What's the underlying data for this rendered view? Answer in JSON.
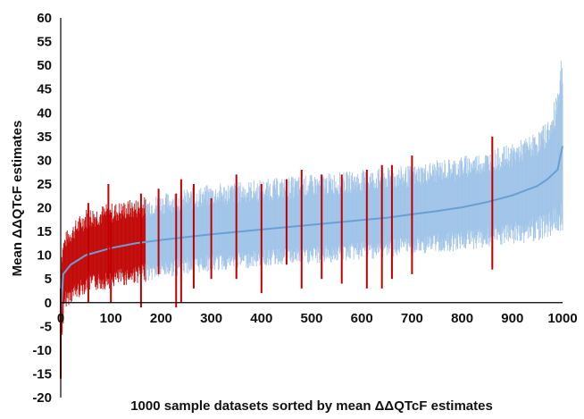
{
  "chart_data": {
    "type": "scatter",
    "title": "",
    "xlabel": "1000 sample datasets sorted by mean ΔΔQTcF estimates",
    "ylabel": "Mean ΔΔQTcF estimates",
    "xlim": [
      0,
      1000
    ],
    "ylim": [
      -20,
      60
    ],
    "x_ticks": [
      0,
      100,
      200,
      300,
      400,
      500,
      600,
      700,
      800,
      900,
      1000
    ],
    "y_ticks": [
      -20,
      -15,
      -10,
      -5,
      0,
      5,
      10,
      15,
      20,
      25,
      30,
      35,
      40,
      45,
      50,
      55,
      60
    ],
    "grid": false,
    "legend": "none",
    "colors": {
      "blue_bars": "#9fc3e8",
      "mean_curve": "#6a9fd4",
      "red_bars": "#c00000",
      "axis": "#000000"
    },
    "mean_curve": {
      "x": [
        0,
        5,
        20,
        50,
        100,
        150,
        200,
        250,
        300,
        350,
        400,
        450,
        500,
        550,
        600,
        650,
        700,
        750,
        800,
        850,
        900,
        950,
        970,
        990,
        1000
      ],
      "y": [
        -3,
        6,
        8,
        10,
        11.5,
        12.5,
        13.2,
        13.8,
        14.4,
        14.9,
        15.4,
        15.9,
        16.4,
        16.9,
        17.4,
        17.9,
        18.6,
        19.3,
        20.1,
        21.2,
        22.6,
        24.6,
        26,
        28,
        33
      ]
    },
    "red_intervals": [
      {
        "x": 0,
        "low": -16,
        "high": 3
      },
      {
        "x": 55,
        "low": 0,
        "high": 21
      },
      {
        "x": 95,
        "low": 5,
        "high": 25
      },
      {
        "x": 100,
        "low": 0,
        "high": 19
      },
      {
        "x": 160,
        "low": -1,
        "high": 23
      },
      {
        "x": 195,
        "low": 6,
        "high": 24
      },
      {
        "x": 230,
        "low": -1,
        "high": 23
      },
      {
        "x": 240,
        "low": 0,
        "high": 26
      },
      {
        "x": 265,
        "low": 3,
        "high": 25
      },
      {
        "x": 300,
        "low": 5,
        "high": 22
      },
      {
        "x": 350,
        "low": 5,
        "high": 27
      },
      {
        "x": 400,
        "low": 2,
        "high": 25
      },
      {
        "x": 450,
        "low": 8,
        "high": 26
      },
      {
        "x": 480,
        "low": 3,
        "high": 28
      },
      {
        "x": 520,
        "low": 5,
        "high": 27
      },
      {
        "x": 560,
        "low": 4,
        "high": 27
      },
      {
        "x": 610,
        "low": 3,
        "high": 28
      },
      {
        "x": 640,
        "low": 3,
        "high": 29
      },
      {
        "x": 660,
        "low": 5,
        "high": 29
      },
      {
        "x": 700,
        "low": 6,
        "high": 31
      },
      {
        "x": 860,
        "low": 7,
        "high": 35
      }
    ],
    "band_envelope": {
      "x": [
        0,
        10,
        50,
        100,
        150,
        200,
        250,
        300,
        350,
        400,
        450,
        500,
        550,
        600,
        650,
        700,
        750,
        800,
        850,
        900,
        950,
        980,
        1000
      ],
      "upper": [
        12,
        15,
        20,
        21,
        22,
        23,
        24,
        25,
        25.5,
        26,
        26.5,
        27,
        27.5,
        28,
        28.5,
        29,
        30,
        31,
        32,
        33.5,
        36,
        40,
        55
      ],
      "lower": [
        -10,
        -1,
        2,
        3,
        4,
        5,
        6,
        6.5,
        7,
        7.5,
        8,
        8,
        8.5,
        9,
        9.5,
        10,
        10.5,
        11,
        11.5,
        12,
        13,
        14,
        15
      ]
    }
  }
}
